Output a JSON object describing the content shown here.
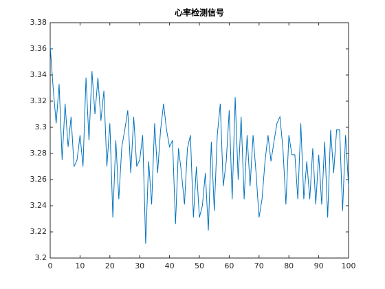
{
  "chart_data": {
    "type": "line",
    "title": "心率检测信号",
    "x": [
      0,
      1,
      2,
      3,
      4,
      5,
      6,
      7,
      8,
      9,
      10,
      11,
      12,
      13,
      14,
      15,
      16,
      17,
      18,
      19,
      20,
      21,
      22,
      23,
      24,
      25,
      26,
      27,
      28,
      29,
      30,
      31,
      32,
      33,
      34,
      35,
      36,
      37,
      38,
      39,
      40,
      41,
      42,
      43,
      44,
      45,
      46,
      47,
      48,
      49,
      50,
      51,
      52,
      53,
      54,
      55,
      56,
      57,
      58,
      59,
      60,
      61,
      62,
      63,
      64,
      65,
      66,
      67,
      68,
      69,
      70,
      71,
      72,
      73,
      74,
      75,
      76,
      77,
      78,
      79,
      80,
      81,
      82,
      83,
      84,
      85,
      86,
      87,
      88,
      89,
      90,
      91,
      92,
      93,
      94,
      95,
      96,
      97,
      98,
      99,
      100
    ],
    "series": [
      {
        "color": "#0072bd",
        "values": [
          3.362,
          3.33,
          3.303,
          3.333,
          3.275,
          3.318,
          3.285,
          3.308,
          3.27,
          3.275,
          3.294,
          3.27,
          3.338,
          3.29,
          3.343,
          3.31,
          3.338,
          3.305,
          3.328,
          3.27,
          3.303,
          3.231,
          3.29,
          3.245,
          3.285,
          3.298,
          3.313,
          3.265,
          3.308,
          3.27,
          3.275,
          3.294,
          3.211,
          3.274,
          3.241,
          3.303,
          3.265,
          3.298,
          3.318,
          3.298,
          3.285,
          3.29,
          3.226,
          3.284,
          3.265,
          3.241,
          3.284,
          3.294,
          3.231,
          3.27,
          3.231,
          3.24,
          3.265,
          3.221,
          3.289,
          3.236,
          3.294,
          3.318,
          3.255,
          3.274,
          3.313,
          3.245,
          3.323,
          3.26,
          3.308,
          3.245,
          3.294,
          3.255,
          3.294,
          3.265,
          3.231,
          3.245,
          3.274,
          3.294,
          3.274,
          3.289,
          3.303,
          3.308,
          3.284,
          3.241,
          3.294,
          3.279,
          3.279,
          3.245,
          3.303,
          3.245,
          3.274,
          3.245,
          3.284,
          3.241,
          3.279,
          3.241,
          3.289,
          3.231,
          3.298,
          3.265,
          3.298,
          3.298,
          3.236,
          3.294,
          3.255
        ]
      }
    ],
    "xlim": [
      0,
      100
    ],
    "xticks": [
      0,
      10,
      20,
      30,
      40,
      50,
      60,
      70,
      80,
      90,
      100
    ],
    "ylim": [
      3.2,
      3.38
    ],
    "yticks": [
      3.2,
      3.22,
      3.24,
      3.26,
      3.28,
      3.3,
      3.32,
      3.34,
      3.36,
      3.38
    ],
    "grid": false
  }
}
